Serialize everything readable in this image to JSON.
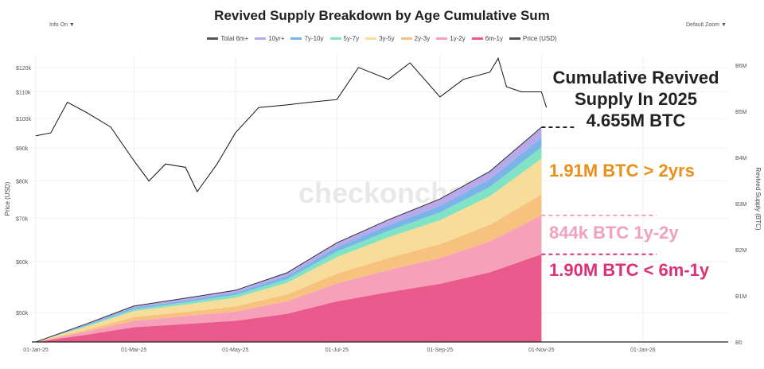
{
  "controls": {
    "info": "Info On ▼",
    "zoom": "Default Zoom ▼"
  },
  "watermark": "checkonchain",
  "annotations": {
    "headline": [
      "Cumulative Revived",
      "Supply In 2025",
      "4.655M BTC"
    ],
    "over2y": "1.91M BTC > 2yrs",
    "y1to2": "844k BTC 1y-2y",
    "m6to1y": "1.90M BTC < 6m-1y",
    "colors": {
      "over2y": "#e8901a",
      "y1to2": "#f2a0bf",
      "m6to1y": "#dd3078"
    }
  },
  "chart_data": {
    "type": "area",
    "title": "Revived Supply Breakdown by Age Cumulative Sum",
    "ylabel": "Price (USD)",
    "y2label": "Revived Supply (BTC)",
    "xticks": [
      "01-Jan-25",
      "01-Mar-25",
      "01-May-25",
      "01-Jul-25",
      "01-Sep-25",
      "01-Nov-25",
      "01-Jan-26"
    ],
    "yticks": [
      "$50k",
      "$60k",
      "$70k",
      "$80k",
      "$90k",
      "$100k",
      "$110k",
      "$120k"
    ],
    "y2ticks": [
      "B0",
      "B1M",
      "B2M",
      "B3M",
      "B4M",
      "B5M",
      "B6M"
    ],
    "y_scale": "log",
    "ylim": [
      45000,
      135000
    ],
    "y2lim": [
      0,
      6100000
    ],
    "legend_placement": "top",
    "legend": [
      "Total 6m+",
      "10yr+",
      "7y-10y",
      "5y-7y",
      "3y-5y",
      "2y-3y",
      "1y-2y",
      "6m-1y",
      "Price (USD)"
    ],
    "x": [
      "2025-01-01",
      "2025-02-01",
      "2025-03-01",
      "2025-04-01",
      "2025-05-01",
      "2025-06-01",
      "2025-07-01",
      "2025-08-01",
      "2025-09-01",
      "2025-10-01",
      "2025-11-01"
    ],
    "series": [
      {
        "name": "6m-1y",
        "color": "#e9598b",
        "values": [
          0,
          0.16,
          0.32,
          0.39,
          0.46,
          0.61,
          0.88,
          1.08,
          1.26,
          1.51,
          1.9
        ]
      },
      {
        "name": "1y-2y",
        "color": "#f7a0ba",
        "values": [
          0,
          0.07,
          0.14,
          0.17,
          0.2,
          0.27,
          0.39,
          0.48,
          0.56,
          0.67,
          0.844
        ]
      },
      {
        "name": "2y-3y",
        "color": "#f6c27e",
        "values": [
          0,
          0.04,
          0.08,
          0.09,
          0.11,
          0.15,
          0.21,
          0.26,
          0.3,
          0.36,
          0.45
        ]
      },
      {
        "name": "3y-5y",
        "color": "#f8dc9a",
        "values": [
          0,
          0.07,
          0.13,
          0.16,
          0.19,
          0.25,
          0.36,
          0.45,
          0.52,
          0.62,
          0.78
        ]
      },
      {
        "name": "5y-7y",
        "color": "#80e3c4",
        "values": [
          0,
          0.02,
          0.04,
          0.05,
          0.06,
          0.08,
          0.12,
          0.14,
          0.17,
          0.2,
          0.25
        ]
      },
      {
        "name": "7y-10y",
        "color": "#7ab4e8",
        "values": [
          0,
          0.02,
          0.035,
          0.04,
          0.05,
          0.07,
          0.1,
          0.12,
          0.14,
          0.17,
          0.21
        ]
      },
      {
        "name": "10yr+",
        "color": "#b9a9ea",
        "values": [
          0,
          0.02,
          0.035,
          0.05,
          0.05,
          0.07,
          0.09,
          0.12,
          0.15,
          0.17,
          0.221
        ]
      }
    ],
    "units_series": "M BTC",
    "price": {
      "name": "Price (USD)",
      "color": "#111111",
      "x": [
        "2025-01-01",
        "2025-01-10",
        "2025-01-20",
        "2025-02-01",
        "2025-02-15",
        "2025-03-01",
        "2025-03-10",
        "2025-03-20",
        "2025-04-01",
        "2025-04-08",
        "2025-04-20",
        "2025-05-01",
        "2025-05-15",
        "2025-06-01",
        "2025-06-15",
        "2025-07-01",
        "2025-07-14",
        "2025-08-01",
        "2025-08-14",
        "2025-09-01",
        "2025-09-15",
        "2025-10-01",
        "2025-10-06",
        "2025-10-11",
        "2025-10-20",
        "2025-11-01",
        "2025-11-04"
      ],
      "values": [
        94000,
        95000,
        106000,
        102000,
        97000,
        86000,
        80000,
        85000,
        84000,
        77000,
        85000,
        95000,
        104000,
        105000,
        106000,
        107000,
        120000,
        115000,
        122000,
        108000,
        115000,
        118000,
        124000,
        112000,
        110000,
        110000,
        104000
      ]
    }
  }
}
